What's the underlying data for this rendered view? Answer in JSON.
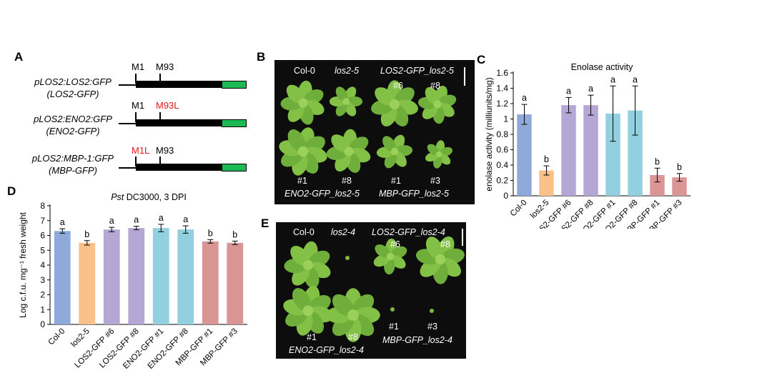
{
  "panel_A": {
    "letter": "A",
    "constructs": [
      {
        "name": "pLOS2:LOS2:GFP",
        "alias": "(LOS2-GFP)",
        "m1": "M1",
        "m93": "M93",
        "m1_red": false,
        "m93_red": false
      },
      {
        "name": "pLOS2:ENO2:GFP",
        "alias": "(ENO2-GFP)",
        "m1": "M1",
        "m93": "M93L",
        "m1_red": false,
        "m93_red": true
      },
      {
        "name": "pLOS2:MBP-1:GFP",
        "alias": "(MBP-GFP)",
        "m1": "M1L",
        "m93": "M93",
        "m1_red": true,
        "m93_red": false
      }
    ],
    "colors": {
      "gene_bar": "#000000",
      "gfp_box": "#1db954",
      "mutation": "#e01b1b"
    }
  },
  "panel_B": {
    "letter": "B",
    "labels_top": [
      "Col-0",
      "los2-5",
      "LOS2-GFP_los2-5"
    ],
    "numbers_top": [
      "#6",
      "#8"
    ],
    "numbers_bottom": [
      "#1",
      "#8",
      "#1",
      "#3"
    ],
    "labels_bottom": [
      "ENO2-GFP_los2-5",
      "MBP-GFP_los2-5"
    ]
  },
  "panel_E": {
    "letter": "E",
    "labels_top": [
      "Col-0",
      "los2-4",
      "LOS2-GFP_los2-4"
    ],
    "numbers_top": [
      "#6",
      "#8"
    ],
    "numbers_bottom": [
      "#1",
      "#8",
      "#1",
      "#3"
    ],
    "labels_bottom": [
      "ENO2-GFP_los2-4",
      "MBP-GFP_los2-4"
    ]
  },
  "chart_data": [
    {
      "panel": "C",
      "type": "bar",
      "title": "Enolase activity",
      "ylabel": "enolase activity (milliunits/mg)",
      "ylim": [
        0,
        1.6
      ],
      "yticks": [
        "0",
        "0.2",
        "0.4",
        "0.6",
        "0.8",
        "1",
        "1.2",
        "1.4",
        "1.6"
      ],
      "categories": [
        "Col-0",
        "los2-5",
        "LOS2-GFP #6",
        "LOS2-GFP #8",
        "ENO2-GFP #1",
        "ENO2-GFP #8",
        "MBP-GFP #1",
        "MBP-GFP #3"
      ],
      "values": [
        1.06,
        0.33,
        1.18,
        1.18,
        1.07,
        1.11,
        0.27,
        0.24
      ],
      "errors": [
        0.13,
        0.06,
        0.1,
        0.13,
        0.36,
        0.32,
        0.09,
        0.05
      ],
      "significance": [
        "a",
        "b",
        "a",
        "a",
        "a",
        "a",
        "b",
        "b"
      ],
      "bar_colors": [
        "#8eaadb",
        "#f9c08a",
        "#b4a7d6",
        "#b4a7d6",
        "#92d0df",
        "#92d0df",
        "#d99694",
        "#d99694"
      ],
      "grid": false,
      "legend": "none"
    },
    {
      "panel": "D",
      "type": "bar",
      "title_italic": "Pst",
      "title_rest": " DC3000, 3 DPI",
      "ylabel": "Log c.f.u. mg⁻¹ fresh weight",
      "ylim": [
        0,
        8
      ],
      "yticks": [
        "0",
        "1",
        "2",
        "3",
        "4",
        "5",
        "6",
        "7",
        "8"
      ],
      "categories": [
        "Col-0",
        "los2-5",
        "LOS2-GFP #6",
        "LOS2-GFP #8",
        "ENO2-GFP #1",
        "ENO2-GFP #8",
        "MBP-GFP #1",
        "MBP-GFP #3"
      ],
      "values": [
        6.3,
        5.5,
        6.4,
        6.5,
        6.5,
        6.4,
        5.6,
        5.5
      ],
      "errors": [
        0.15,
        0.15,
        0.15,
        0.12,
        0.25,
        0.25,
        0.12,
        0.12
      ],
      "significance": [
        "a",
        "b",
        "a",
        "a",
        "a",
        "a",
        "b",
        "b"
      ],
      "bar_colors": [
        "#8eaadb",
        "#f9c08a",
        "#b4a7d6",
        "#b4a7d6",
        "#92d0df",
        "#92d0df",
        "#d99694",
        "#d99694"
      ],
      "grid": false,
      "legend": "none"
    }
  ]
}
